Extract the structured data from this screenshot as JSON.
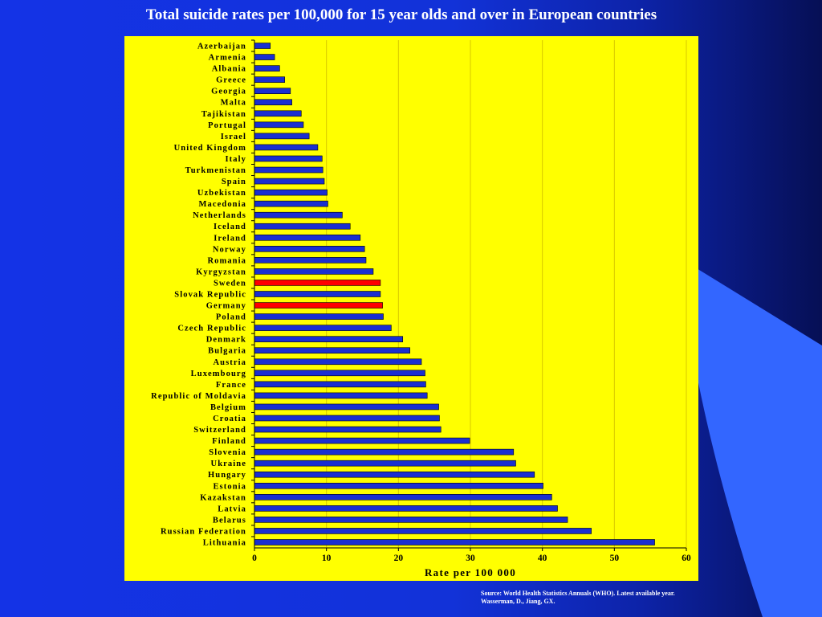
{
  "slide": {
    "title": "Total suicide rates per 100,000 for 15 year olds and over in European countries",
    "source_line1": "Source: World Health Statistics Annuals (WHO). Latest available year.",
    "source_line2": "Wasserman, D., Jiang, GX.",
    "background_color": "#1433e6",
    "panel_color": "#ffff00",
    "decoration_color": "#3366ff"
  },
  "chart_data": {
    "type": "bar",
    "orientation": "horizontal",
    "title": "Total suicide rates per 100,000 for 15 year olds and over in European countries",
    "xlabel": "Rate per 100 000",
    "ylabel": "",
    "xlim": [
      0,
      60
    ],
    "xticks": [
      0,
      10,
      20,
      30,
      40,
      50,
      60
    ],
    "grid": true,
    "bar_color": "#1a2fd0",
    "highlight_color": "#ff0000",
    "highlighted": [
      "Sweden",
      "Germany"
    ],
    "categories": [
      "Azerbaijan",
      "Armenia",
      "Albania",
      "Greece",
      "Georgia",
      "Malta",
      "Tajikistan",
      "Portugal",
      "Israel",
      "United Kingdom",
      "Italy",
      "Turkmenistan",
      "Spain",
      "Uzbekistan",
      "Macedonia",
      "Netherlands",
      "Iceland",
      "Ireland",
      "Norway",
      "Romania",
      "Kyrgyzstan",
      "Sweden",
      "Slovak Republic",
      "Germany",
      "Poland",
      "Czech Republic",
      "Denmark",
      "Bulgaria",
      "Austria",
      "Luxembourg",
      "France",
      "Republic of Moldavia",
      "Belgium",
      "Croatia",
      "Switzerland",
      "Finland",
      "Slovenia",
      "Ukraine",
      "Hungary",
      "Estonia",
      "Kazakstan",
      "Latvia",
      "Belarus",
      "Russian Federation",
      "Lithuania"
    ],
    "values": [
      2.2,
      2.8,
      3.5,
      4.2,
      5.0,
      5.2,
      6.5,
      6.8,
      7.6,
      8.8,
      9.4,
      9.5,
      9.7,
      10.1,
      10.2,
      12.2,
      13.3,
      14.7,
      15.3,
      15.5,
      16.5,
      17.5,
      17.5,
      17.8,
      17.9,
      19.0,
      20.6,
      21.6,
      23.2,
      23.7,
      23.8,
      24.0,
      25.6,
      25.7,
      25.9,
      29.9,
      36.0,
      36.3,
      38.9,
      40.1,
      41.3,
      42.1,
      43.5,
      46.8,
      55.6
    ]
  }
}
